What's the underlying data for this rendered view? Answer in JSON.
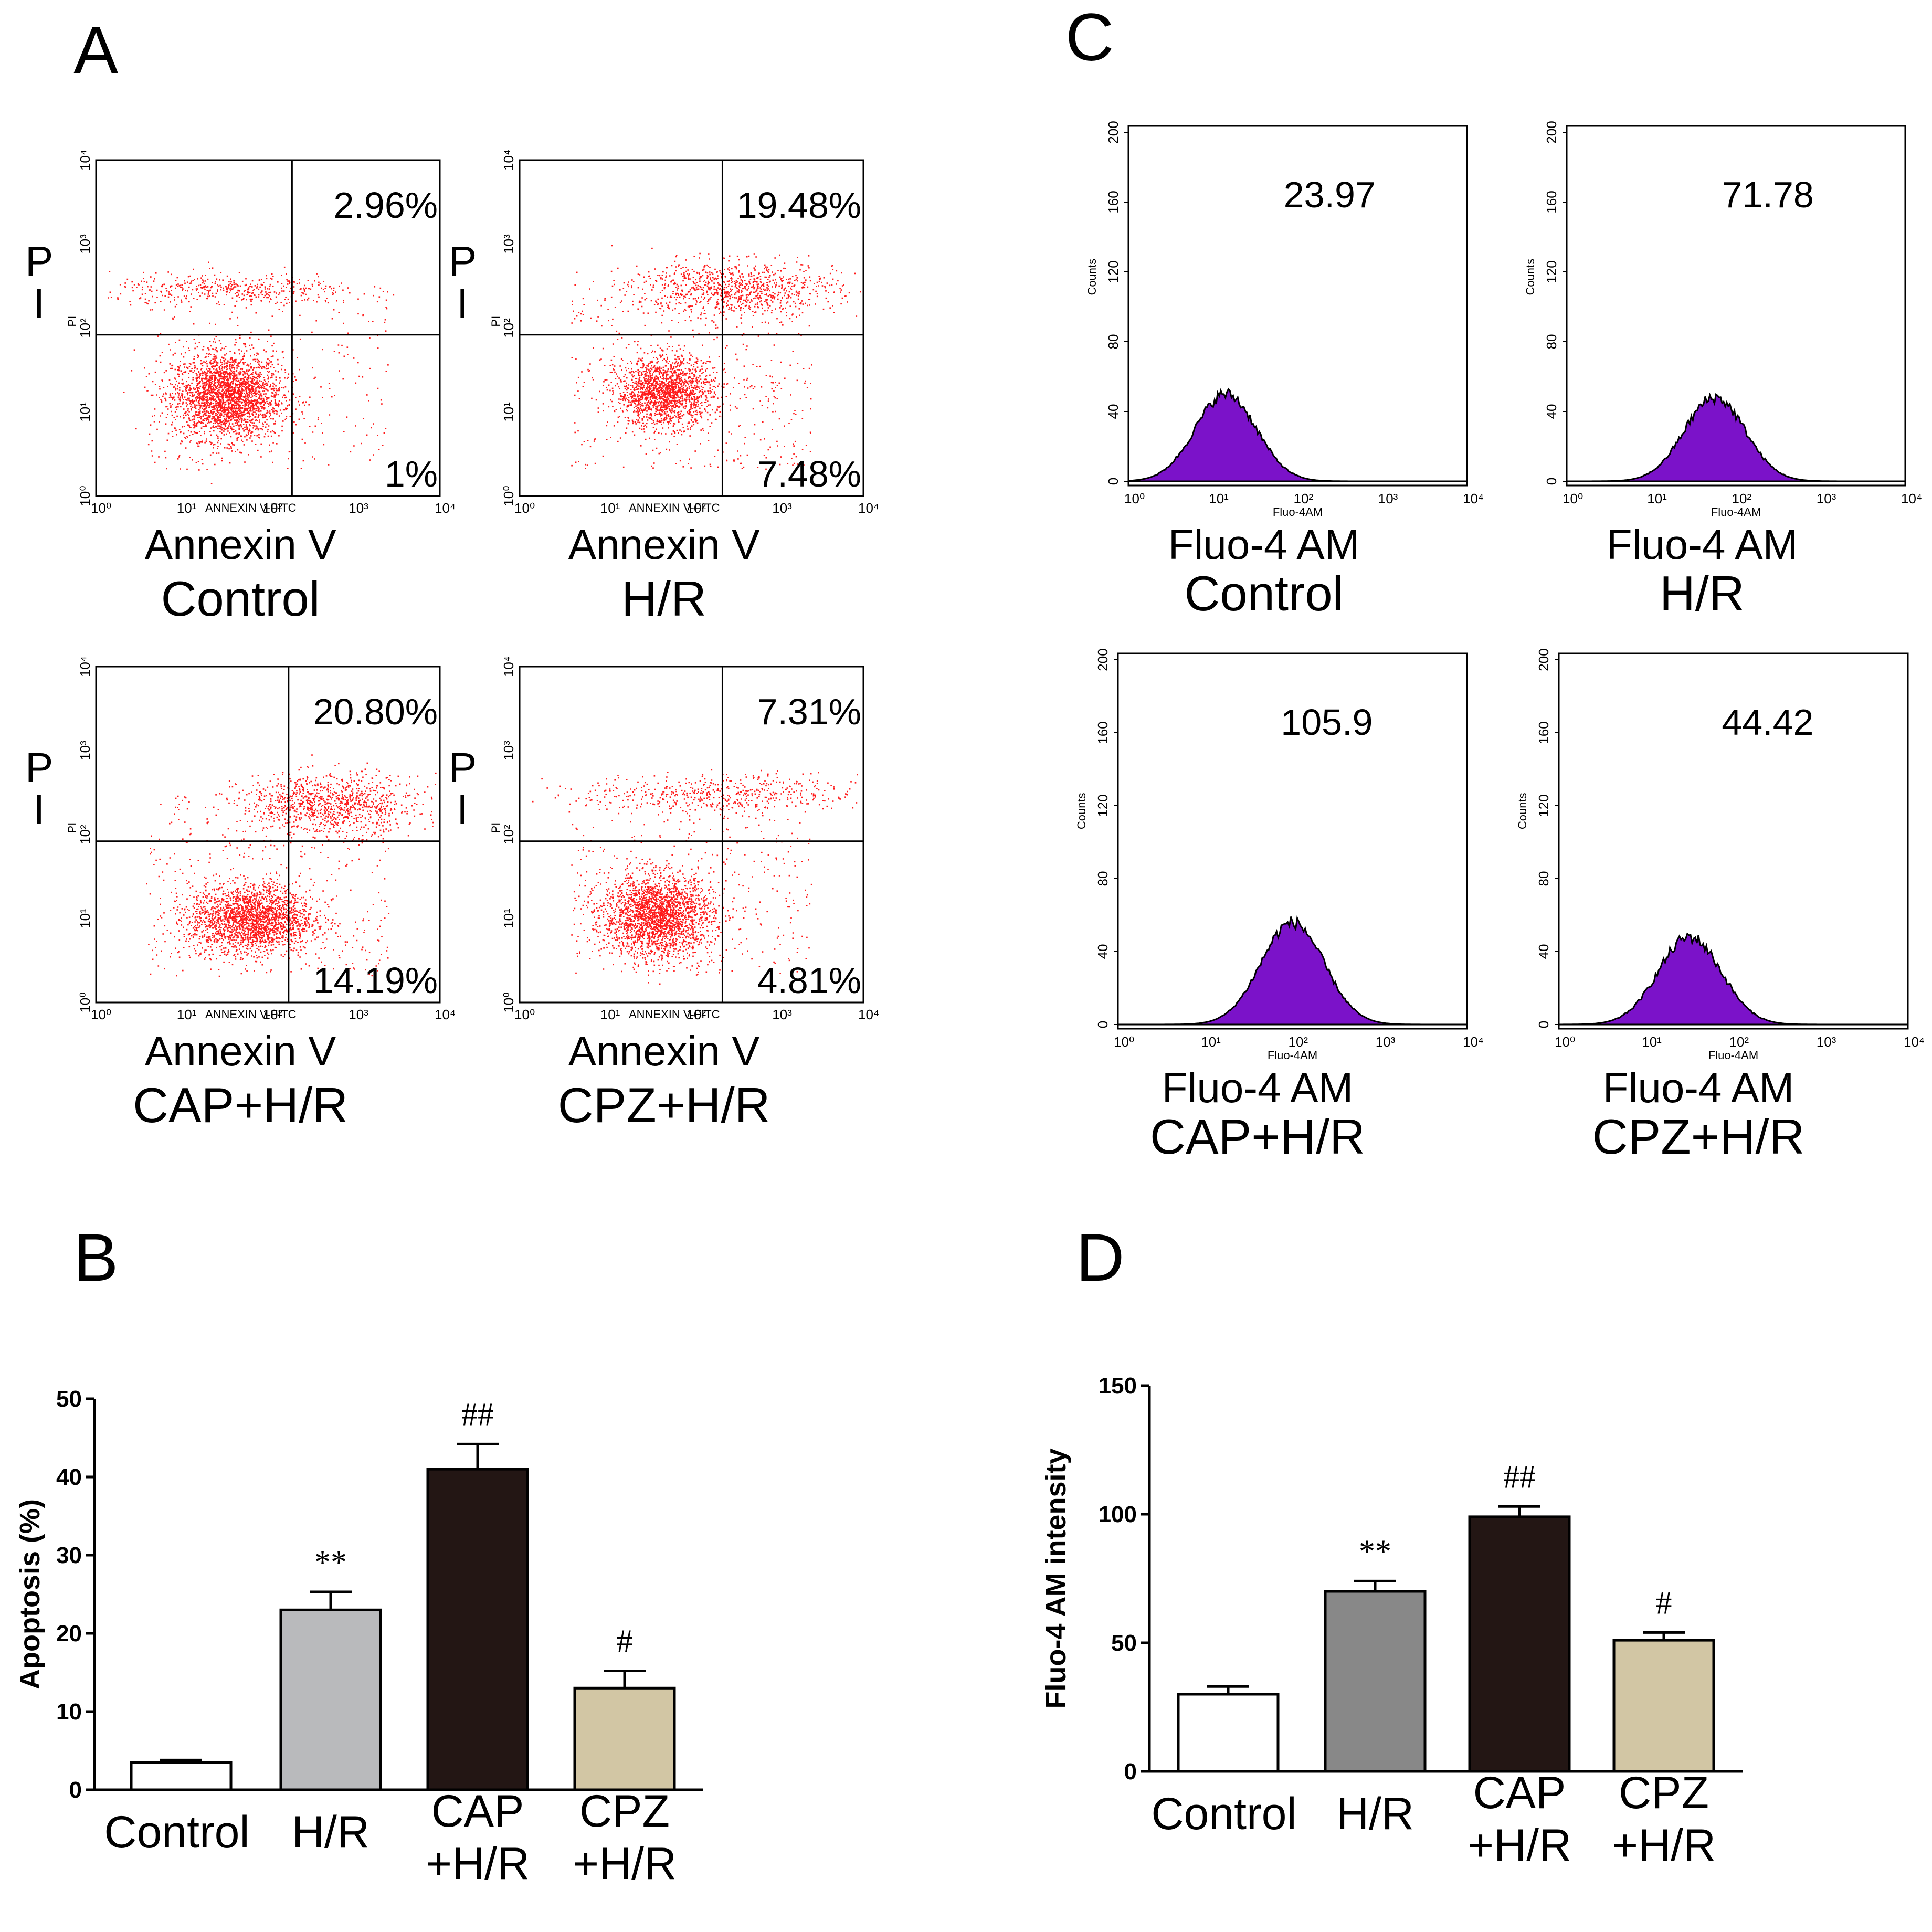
{
  "panels": {
    "A": "A",
    "B": "B",
    "C": "C",
    "D": "D"
  },
  "flow_apoptosis": {
    "pi_label": "P\nI",
    "axis_tiny_y": "PI",
    "axis_tiny_x": "ANNEXIN V-FITC",
    "xlabel": "Annexin V",
    "ticks": [
      "10⁰",
      "10¹",
      "10²",
      "10³",
      "10⁴"
    ],
    "plots": [
      {
        "name": "Control",
        "ur": "2.96%",
        "lr": "1%"
      },
      {
        "name": "H/R",
        "ur": "19.48%",
        "lr": "7.48%"
      },
      {
        "name": "CAP+H/R",
        "ur": "20.80%",
        "lr": "14.19%"
      },
      {
        "name": "CPZ+H/R",
        "ur": "7.31%",
        "lr": "4.81%"
      }
    ]
  },
  "flow_fluo": {
    "xlabel": "Fluo-4 AM",
    "axis_tiny_x": "Fluo-4AM",
    "axis_tiny_y": "Counts",
    "yticks": [
      "0",
      "40",
      "80",
      "120",
      "160",
      "200"
    ],
    "xticks": [
      "10⁰",
      "10¹",
      "10²",
      "10³",
      "10⁴"
    ],
    "fill_color": "#7b12c9",
    "plots": [
      {
        "name": "Control",
        "mfi": "23.97",
        "peak_decade": 1.15,
        "peak_count": 50
      },
      {
        "name": "H/R",
        "mfi": "71.78",
        "peak_decade": 1.75,
        "peak_count": 48
      },
      {
        "name": "CAP+H/R",
        "mfi": "105.9",
        "peak_decade": 2.0,
        "peak_count": 56
      },
      {
        "name": "CPZ+H/R",
        "mfi": "44.42",
        "peak_decade": 1.5,
        "peak_count": 48
      }
    ]
  },
  "chart_data": [
    {
      "type": "bar",
      "panel": "B",
      "title": "",
      "xlabel": "",
      "ylabel": "Apoptosis (%)",
      "ylim": [
        0,
        50
      ],
      "yticks": [
        "0",
        "10",
        "20",
        "30",
        "40",
        "50"
      ],
      "categories": [
        "Control",
        "H/R",
        "CAP\n+H/R",
        "CPZ\n+H/R"
      ],
      "values": [
        3.5,
        23.0,
        41.0,
        13.0
      ],
      "errors": [
        0.3,
        2.3,
        3.2,
        2.2
      ],
      "colors": [
        "#ffffff",
        "#b9babc",
        "#231614",
        "#d2c6a4"
      ],
      "annotations": [
        "",
        "**",
        "##",
        "#"
      ]
    },
    {
      "type": "bar",
      "panel": "D",
      "title": "",
      "xlabel": "",
      "ylabel": "Fluo-4 AM intensity",
      "ylim": [
        0,
        150
      ],
      "yticks": [
        "0",
        "50",
        "100",
        "150"
      ],
      "categories": [
        "Control",
        "H/R",
        "CAP\n+H/R",
        "CPZ\n+H/R"
      ],
      "values": [
        30,
        70,
        99,
        51
      ],
      "errors": [
        3,
        4,
        4,
        3
      ],
      "colors": [
        "#ffffff",
        "#888888",
        "#231614",
        "#d2c6a4"
      ],
      "annotations": [
        "",
        "**",
        "##",
        "#"
      ]
    }
  ]
}
